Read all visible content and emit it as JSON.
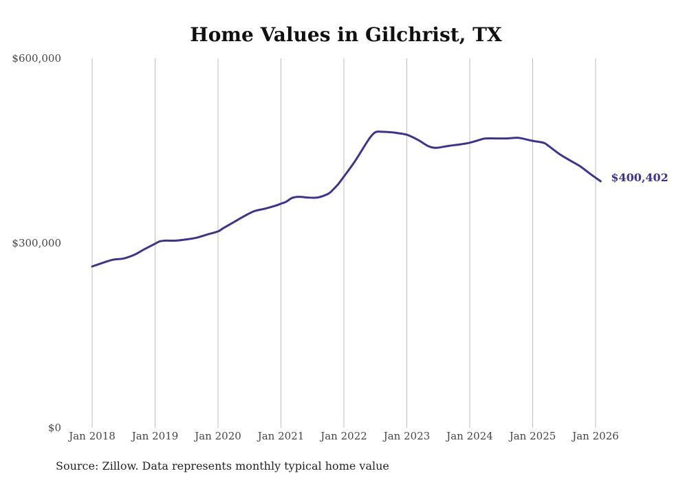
{
  "chart_data": {
    "type": "line",
    "title": "Home Values in Gilchrist, TX",
    "source": "Source: Zillow. Data represents monthly typical home value",
    "xlabel": "",
    "ylabel": "",
    "ylim": [
      0,
      600000
    ],
    "y_ticks": [
      {
        "value": 0,
        "label": "$0"
      },
      {
        "value": 300000,
        "label": "$300,000"
      },
      {
        "value": 600000,
        "label": "$600,000"
      }
    ],
    "x_range": [
      2018.0,
      2026.0
    ],
    "x_ticks": [
      {
        "value": 2018,
        "label": "Jan 2018"
      },
      {
        "value": 2019,
        "label": "Jan 2019"
      },
      {
        "value": 2020,
        "label": "Jan 2020"
      },
      {
        "value": 2021,
        "label": "Jan 2021"
      },
      {
        "value": 2022,
        "label": "Jan 2022"
      },
      {
        "value": 2023,
        "label": "Jan 2023"
      },
      {
        "value": 2024,
        "label": "Jan 2024"
      },
      {
        "value": 2025,
        "label": "Jan 2025"
      },
      {
        "value": 2026,
        "label": "Jan 2026"
      }
    ],
    "grid": "vertical",
    "series": [
      {
        "name": "Typical home value",
        "color": "#3b3393",
        "end_label": "$400,402",
        "points": [
          [
            2018.0,
            262000
          ],
          [
            2018.17,
            268000
          ],
          [
            2018.33,
            273000
          ],
          [
            2018.5,
            275000
          ],
          [
            2018.67,
            281000
          ],
          [
            2018.83,
            290000
          ],
          [
            2019.0,
            299000
          ],
          [
            2019.08,
            303000
          ],
          [
            2019.17,
            304000
          ],
          [
            2019.33,
            304000
          ],
          [
            2019.5,
            306000
          ],
          [
            2019.67,
            309000
          ],
          [
            2019.83,
            314000
          ],
          [
            2020.0,
            319000
          ],
          [
            2020.08,
            324000
          ],
          [
            2020.25,
            334000
          ],
          [
            2020.42,
            344000
          ],
          [
            2020.58,
            352000
          ],
          [
            2020.75,
            356000
          ],
          [
            2020.92,
            361000
          ],
          [
            2021.0,
            364000
          ],
          [
            2021.08,
            367000
          ],
          [
            2021.17,
            373000
          ],
          [
            2021.25,
            375000
          ],
          [
            2021.33,
            375000
          ],
          [
            2021.42,
            374000
          ],
          [
            2021.58,
            374000
          ],
          [
            2021.75,
            380000
          ],
          [
            2021.83,
            387000
          ],
          [
            2021.92,
            397000
          ],
          [
            2022.0,
            408000
          ],
          [
            2022.17,
            432000
          ],
          [
            2022.33,
            458000
          ],
          [
            2022.42,
            472000
          ],
          [
            2022.5,
            480000
          ],
          [
            2022.58,
            481000
          ],
          [
            2022.75,
            480000
          ],
          [
            2022.83,
            479000
          ],
          [
            2023.0,
            476000
          ],
          [
            2023.17,
            468000
          ],
          [
            2023.33,
            458000
          ],
          [
            2023.42,
            455000
          ],
          [
            2023.5,
            455000
          ],
          [
            2023.67,
            458000
          ],
          [
            2023.83,
            460000
          ],
          [
            2024.0,
            463000
          ],
          [
            2024.17,
            468000
          ],
          [
            2024.25,
            470000
          ],
          [
            2024.42,
            470000
          ],
          [
            2024.58,
            470000
          ],
          [
            2024.75,
            471000
          ],
          [
            2024.83,
            470000
          ],
          [
            2025.0,
            466000
          ],
          [
            2025.17,
            463000
          ],
          [
            2025.25,
            458000
          ],
          [
            2025.42,
            445000
          ],
          [
            2025.58,
            435000
          ],
          [
            2025.75,
            425000
          ],
          [
            2025.92,
            412000
          ],
          [
            2026.08,
            400402
          ]
        ]
      }
    ]
  }
}
